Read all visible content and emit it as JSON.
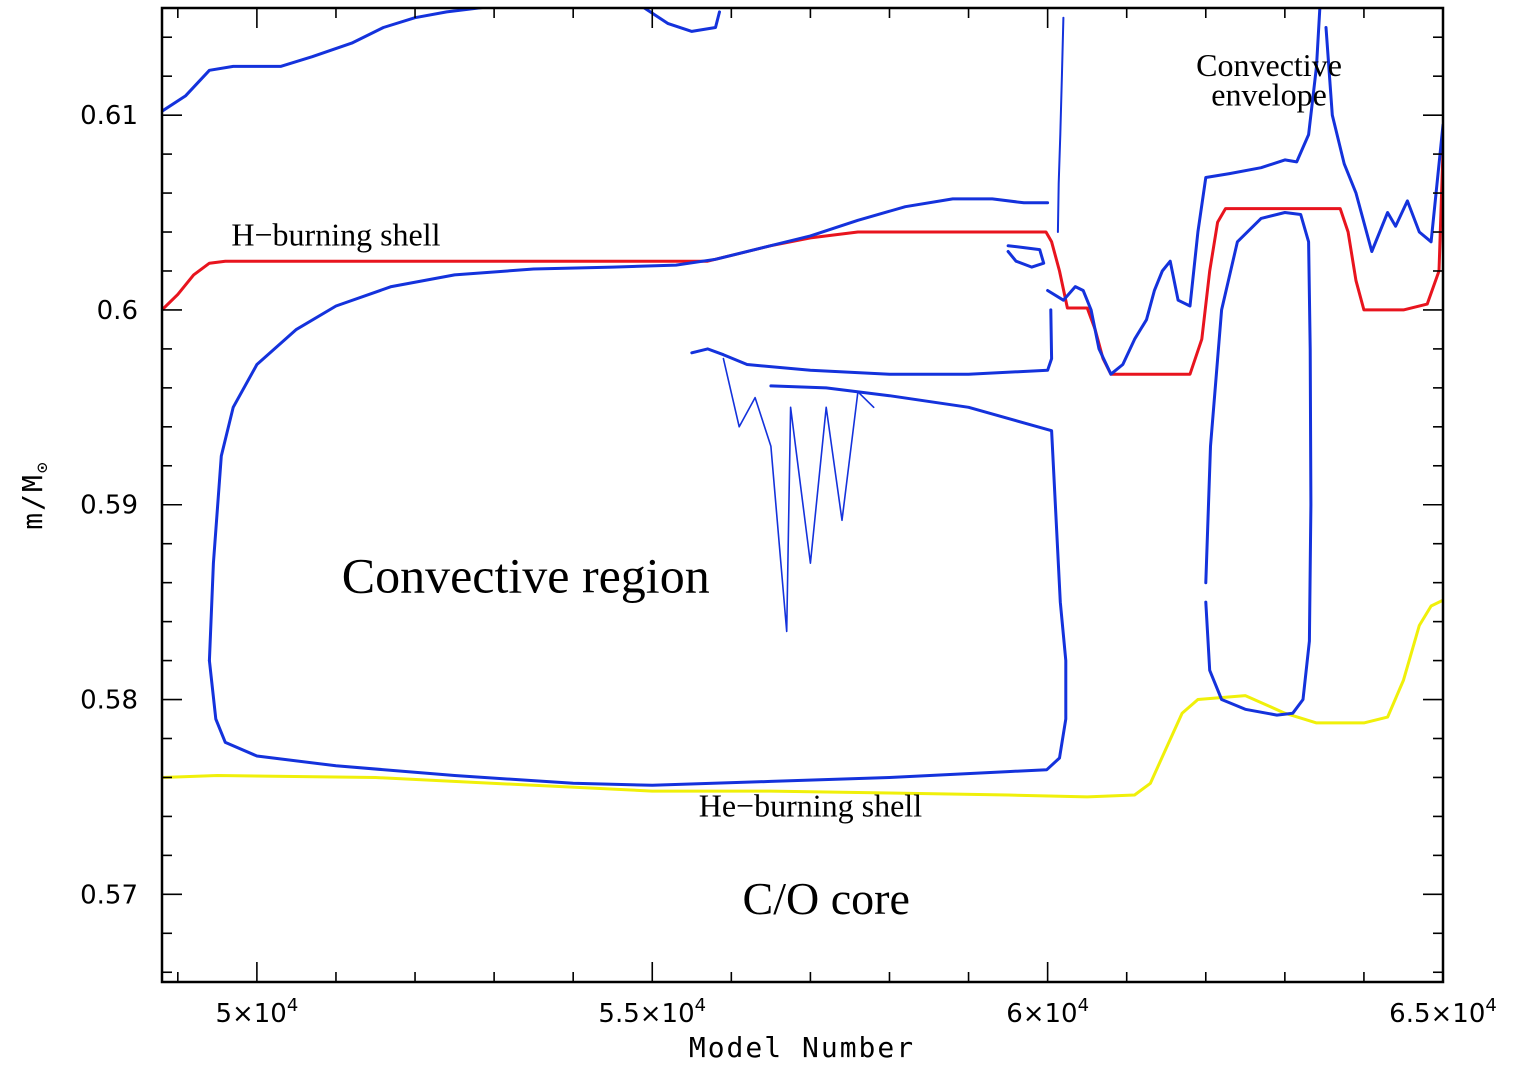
{
  "chart_data": {
    "type": "line",
    "xlabel": "Model Number",
    "ylabel": "m/M",
    "ylabel_symbol": "⊙",
    "xlim": [
      48800,
      65000
    ],
    "ylim": [
      0.5655,
      0.6155
    ],
    "xticks": [
      {
        "value": 50000,
        "mantissa": "5",
        "exp": "4"
      },
      {
        "value": 55000,
        "mantissa": "5.5",
        "exp": "4"
      },
      {
        "value": 60000,
        "mantissa": "6",
        "exp": "4"
      },
      {
        "value": 65000,
        "mantissa": "6.5",
        "exp": "4"
      }
    ],
    "xticks_minor": [
      49000,
      50000,
      51000,
      52000,
      53000,
      54000,
      55000,
      56000,
      57000,
      58000,
      59000,
      60000,
      61000,
      62000,
      63000,
      64000,
      65000
    ],
    "yticks": [
      {
        "value": 0.57,
        "label": "0.57"
      },
      {
        "value": 0.58,
        "label": "0.58"
      },
      {
        "value": 0.59,
        "label": "0.59"
      },
      {
        "value": 0.6,
        "label": "0.6"
      },
      {
        "value": 0.61,
        "label": "0.61"
      }
    ],
    "yticks_minor": [
      0.566,
      0.568,
      0.57,
      0.572,
      0.574,
      0.576,
      0.578,
      0.58,
      0.582,
      0.584,
      0.586,
      0.588,
      0.59,
      0.592,
      0.594,
      0.596,
      0.598,
      0.6,
      0.602,
      0.604,
      0.606,
      0.608,
      0.61,
      0.612,
      0.614
    ],
    "annotations": [
      {
        "text": "H−burning shell",
        "x": 51000,
        "y": 0.6033,
        "size": 32
      },
      {
        "text": "He−burning shell",
        "x": 57000,
        "y": 0.574,
        "size": 32
      },
      {
        "text": "Convective region",
        "x": 53400,
        "y": 0.5855,
        "size": 50
      },
      {
        "text": "C/O core",
        "x": 57200,
        "y": 0.569,
        "size": 46
      },
      {
        "text": "Convective",
        "x": 62800,
        "y": 0.612,
        "size": 32
      },
      {
        "text": "envelope",
        "x": 62800,
        "y": 0.6105,
        "size": 32
      }
    ],
    "series": [
      {
        "color": "#e8141e",
        "width": 3,
        "points": [
          [
            48800,
            0.6
          ],
          [
            49000,
            0.6008
          ],
          [
            49200,
            0.6018
          ],
          [
            49400,
            0.6024
          ],
          [
            49600,
            0.6025
          ],
          [
            55700,
            0.6025
          ],
          [
            56000,
            0.6028
          ],
          [
            56500,
            0.6033
          ],
          [
            57000,
            0.6037
          ],
          [
            57600,
            0.604
          ],
          [
            58500,
            0.604
          ],
          [
            59500,
            0.604
          ],
          [
            59980,
            0.604
          ],
          [
            60050,
            0.6035
          ],
          [
            60150,
            0.602
          ],
          [
            60250,
            0.6001
          ],
          [
            60500,
            0.6001
          ],
          [
            60600,
            0.599
          ],
          [
            60700,
            0.5975
          ],
          [
            60800,
            0.5967
          ],
          [
            61800,
            0.5967
          ],
          [
            61950,
            0.5985
          ],
          [
            62050,
            0.602
          ],
          [
            62150,
            0.6045
          ],
          [
            62250,
            0.6052
          ],
          [
            63700,
            0.6052
          ],
          [
            63800,
            0.604
          ],
          [
            63900,
            0.6015
          ],
          [
            64000,
            0.6
          ],
          [
            64500,
            0.6
          ],
          [
            64800,
            0.6003
          ],
          [
            64950,
            0.602
          ],
          [
            65000,
            0.6082
          ]
        ]
      },
      {
        "color": "#f0f00a",
        "width": 3,
        "points": [
          [
            48800,
            0.576
          ],
          [
            49500,
            0.5761
          ],
          [
            51500,
            0.576
          ],
          [
            53500,
            0.5756
          ],
          [
            55000,
            0.5753
          ],
          [
            56500,
            0.5753
          ],
          [
            58000,
            0.5752
          ],
          [
            59500,
            0.5751
          ],
          [
            60500,
            0.575
          ],
          [
            61100,
            0.5751
          ],
          [
            61300,
            0.5757
          ],
          [
            61500,
            0.5775
          ],
          [
            61700,
            0.5793
          ],
          [
            61900,
            0.58
          ],
          [
            62500,
            0.5802
          ],
          [
            63000,
            0.5793
          ],
          [
            63400,
            0.5788
          ],
          [
            64000,
            0.5788
          ],
          [
            64300,
            0.5791
          ],
          [
            64500,
            0.581
          ],
          [
            64700,
            0.5838
          ],
          [
            64850,
            0.5848
          ],
          [
            65000,
            0.5851
          ]
        ]
      },
      {
        "color": "#1432dc",
        "width": 3,
        "points": [
          [
            48800,
            0.6102
          ],
          [
            49100,
            0.611
          ],
          [
            49400,
            0.6123
          ],
          [
            49700,
            0.6125
          ],
          [
            50300,
            0.6125
          ],
          [
            50700,
            0.613
          ],
          [
            51200,
            0.6137
          ],
          [
            51600,
            0.6145
          ],
          [
            52000,
            0.615
          ],
          [
            52400,
            0.6153
          ],
          [
            53000,
            0.6156
          ]
        ]
      },
      {
        "color": "#1432dc",
        "width": 3,
        "points": [
          [
            54900,
            0.6155
          ],
          [
            55200,
            0.6147
          ],
          [
            55500,
            0.6143
          ],
          [
            55800,
            0.6145
          ],
          [
            55850,
            0.6153
          ]
        ]
      },
      {
        "color": "#1432dc",
        "width": 3,
        "points": [
          [
            49400,
            0.582
          ],
          [
            49450,
            0.587
          ],
          [
            49550,
            0.5925
          ],
          [
            49700,
            0.595
          ],
          [
            50000,
            0.5972
          ],
          [
            50500,
            0.599
          ],
          [
            51000,
            0.6002
          ],
          [
            51700,
            0.6012
          ],
          [
            52500,
            0.6018
          ],
          [
            53500,
            0.6021
          ],
          [
            54500,
            0.6022
          ],
          [
            55300,
            0.6023
          ],
          [
            55800,
            0.6026
          ],
          [
            56400,
            0.6032
          ],
          [
            57000,
            0.6038
          ],
          [
            57600,
            0.6046
          ],
          [
            58200,
            0.6053
          ],
          [
            58800,
            0.6057
          ],
          [
            59300,
            0.6057
          ],
          [
            59700,
            0.6055
          ],
          [
            60000,
            0.6055
          ]
        ]
      },
      {
        "color": "#1432dc",
        "width": 3,
        "points": [
          [
            49400,
            0.582
          ],
          [
            49480,
            0.579
          ],
          [
            49600,
            0.5778
          ],
          [
            50000,
            0.5771
          ],
          [
            51000,
            0.5766
          ],
          [
            52500,
            0.5761
          ],
          [
            54000,
            0.5757
          ],
          [
            55000,
            0.5756
          ],
          [
            56500,
            0.5758
          ],
          [
            58000,
            0.576
          ],
          [
            59500,
            0.5763
          ],
          [
            59990,
            0.5764
          ],
          [
            60150,
            0.577
          ],
          [
            60230,
            0.579
          ],
          [
            60230,
            0.582
          ],
          [
            60160,
            0.585
          ],
          [
            60050,
            0.5938
          ],
          [
            59000,
            0.595
          ],
          [
            58000,
            0.5956
          ],
          [
            57200,
            0.596
          ],
          [
            56500,
            0.5961
          ]
        ]
      },
      {
        "color": "#1432dc",
        "width": 3,
        "points": [
          [
            55500,
            0.5978
          ],
          [
            55700,
            0.598
          ],
          [
            55900,
            0.5977
          ],
          [
            56200,
            0.5972
          ],
          [
            57000,
            0.5969
          ],
          [
            58000,
            0.5967
          ],
          [
            59000,
            0.5967
          ],
          [
            60000,
            0.5969
          ],
          [
            60050,
            0.5975
          ],
          [
            60040,
            0.6
          ]
        ]
      },
      {
        "color": "#1432dc",
        "width": 3,
        "points": [
          [
            60000,
            0.601
          ],
          [
            60200,
            0.6005
          ],
          [
            60350,
            0.6012
          ],
          [
            60450,
            0.601
          ],
          [
            60550,
            0.6
          ],
          [
            60650,
            0.598
          ],
          [
            60800,
            0.5967
          ],
          [
            60950,
            0.5972
          ],
          [
            61100,
            0.5985
          ],
          [
            61250,
            0.5995
          ],
          [
            61350,
            0.601
          ],
          [
            61450,
            0.602
          ],
          [
            61550,
            0.6025
          ],
          [
            61650,
            0.6005
          ],
          [
            61800,
            0.6002
          ],
          [
            61900,
            0.604
          ],
          [
            62000,
            0.6068
          ],
          [
            62300,
            0.607
          ],
          [
            62700,
            0.6073
          ],
          [
            63000,
            0.6077
          ],
          [
            63150,
            0.6076
          ],
          [
            63300,
            0.609
          ],
          [
            63400,
            0.6125
          ],
          [
            63450,
            0.616
          ]
        ]
      },
      {
        "color": "#1432dc",
        "width": 3,
        "points": [
          [
            63520,
            0.6145
          ],
          [
            63600,
            0.61
          ],
          [
            63750,
            0.6075
          ],
          [
            63900,
            0.606
          ],
          [
            64100,
            0.603
          ],
          [
            64300,
            0.605
          ],
          [
            64400,
            0.6043
          ],
          [
            64550,
            0.6056
          ],
          [
            64700,
            0.604
          ],
          [
            64850,
            0.6035
          ],
          [
            65000,
            0.6095
          ]
        ]
      },
      {
        "color": "#1432dc",
        "width": 3,
        "points": [
          [
            62000,
            0.585
          ],
          [
            62050,
            0.5815
          ],
          [
            62200,
            0.58
          ],
          [
            62500,
            0.5795
          ],
          [
            62900,
            0.5792
          ],
          [
            63100,
            0.5793
          ],
          [
            63230,
            0.58
          ],
          [
            63310,
            0.583
          ],
          [
            63330,
            0.59
          ],
          [
            63320,
            0.598
          ],
          [
            63300,
            0.6035
          ],
          [
            63200,
            0.6049
          ],
          [
            63000,
            0.605
          ],
          [
            62700,
            0.6047
          ],
          [
            62400,
            0.6035
          ],
          [
            62200,
            0.6
          ],
          [
            62060,
            0.593
          ],
          [
            62000,
            0.586
          ]
        ]
      },
      {
        "color": "#1432dc",
        "width": 2,
        "points": [
          [
            60130,
            0.604
          ],
          [
            60140,
            0.6065
          ],
          [
            60160,
            0.609
          ],
          [
            60180,
            0.612
          ],
          [
            60200,
            0.615
          ]
        ]
      },
      {
        "color": "#1432dc",
        "width": 3,
        "points": [
          [
            59500,
            0.6033
          ],
          [
            59700,
            0.6032
          ],
          [
            59900,
            0.6031
          ],
          [
            59950,
            0.6024
          ],
          [
            59800,
            0.6022
          ],
          [
            59600,
            0.6025
          ],
          [
            59500,
            0.603
          ]
        ]
      },
      {
        "color": "#1432dc",
        "width": 1.6,
        "points": [
          [
            55900,
            0.5975
          ],
          [
            56100,
            0.594
          ],
          [
            56300,
            0.5955
          ],
          [
            56500,
            0.593
          ],
          [
            56700,
            0.5835
          ],
          [
            56750,
            0.595
          ],
          [
            57000,
            0.587
          ],
          [
            57200,
            0.595
          ],
          [
            57400,
            0.5892
          ],
          [
            57600,
            0.5958
          ],
          [
            57800,
            0.595
          ]
        ]
      }
    ]
  }
}
